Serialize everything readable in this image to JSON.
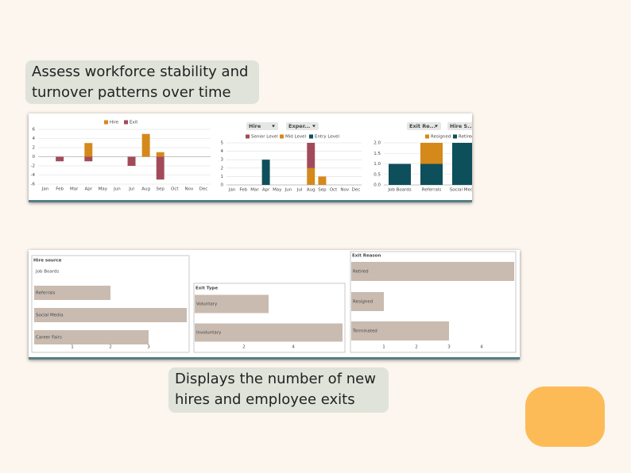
{
  "captions": [
    "Assess workforce stability and turnover patterns over time",
    "Displays the number of new hires and employee exits"
  ],
  "chart_data": [
    {
      "type": "bar",
      "stacked": true,
      "grid": true,
      "categories": [
        "Jan",
        "Feb",
        "Mar",
        "Apr",
        "May",
        "Jun",
        "Jul",
        "Aug",
        "Sep",
        "Oct",
        "Nov",
        "Dec"
      ],
      "series": [
        {
          "name": "Hire",
          "color": "#d4891a",
          "values": [
            0,
            0,
            0,
            3,
            0,
            0,
            0,
            5,
            1,
            0,
            0,
            0
          ]
        },
        {
          "name": "Exit",
          "color": "#a34a5a",
          "values": [
            0,
            -1,
            0,
            -1,
            0,
            0,
            -2,
            0,
            -5,
            0,
            0,
            0
          ]
        }
      ],
      "ylim": [
        -6,
        6
      ],
      "yticks": [
        6,
        4,
        2,
        0,
        -2,
        -4,
        -6
      ]
    },
    {
      "type": "bar",
      "stacked": true,
      "grid": true,
      "filters": [
        "Hire",
        "Exper..."
      ],
      "categories": [
        "Jan",
        "Feb",
        "Mar",
        "Apr",
        "May",
        "Jun",
        "Jul",
        "Aug",
        "Sep",
        "Oct",
        "Nov",
        "Dec"
      ],
      "series": [
        {
          "name": "Entry Level",
          "color": "#0e4f5c",
          "values": [
            0,
            0,
            0,
            3,
            0,
            0,
            0,
            0,
            0,
            0,
            0,
            0
          ]
        },
        {
          "name": "Mid Level",
          "color": "#d4891a",
          "values": [
            0,
            0,
            0,
            0,
            0,
            0,
            0,
            2,
            1,
            0,
            0,
            0
          ]
        },
        {
          "name": "Senior Level",
          "color": "#a34a5a",
          "values": [
            0,
            0,
            0,
            0,
            0,
            0,
            0,
            3,
            0,
            0,
            0,
            0
          ]
        }
      ],
      "ylim": [
        0,
        5
      ],
      "yticks": [
        0,
        1,
        2,
        3,
        4,
        5
      ]
    },
    {
      "type": "bar",
      "stacked": true,
      "grid": true,
      "filters": [
        "Exit Re...",
        "Hire S..."
      ],
      "categories": [
        "Job Boards",
        "Referrals",
        "Social Media"
      ],
      "series": [
        {
          "name": "Retired",
          "color": "#0e4f5c",
          "values": [
            1,
            1,
            2
          ]
        },
        {
          "name": "Resigned",
          "color": "#d4891a",
          "values": [
            0,
            1,
            0
          ]
        }
      ],
      "ylim": [
        0,
        2
      ],
      "yticks": [
        {
          "value": 0,
          "label": "0.0"
        },
        {
          "value": 0.5,
          "label": "0.5"
        },
        {
          "value": 1,
          "label": "1.0"
        },
        {
          "value": 1.5,
          "label": "1.5"
        },
        {
          "value": 2,
          "label": "2.0"
        }
      ]
    },
    {
      "type": "barh",
      "title": "Hire source",
      "color": "#c9bbb0",
      "categories": [
        "Job Boards",
        "Referrals",
        "Social Media",
        "Career Fairs"
      ],
      "values": [
        0,
        2,
        4,
        3
      ],
      "xlim": [
        0,
        4
      ],
      "xticks": [
        1,
        2,
        3
      ]
    },
    {
      "type": "barh",
      "title": "Exit Type",
      "color": "#c9bbb0",
      "categories": [
        "Voluntary",
        "Involuntary"
      ],
      "values": [
        3,
        6
      ],
      "xlim": [
        0,
        6
      ],
      "xticks": [
        2,
        4
      ]
    },
    {
      "type": "barh",
      "title": "Exit Reason",
      "color": "#c9bbb0",
      "categories": [
        "Retired",
        "Resigned",
        "Terminated"
      ],
      "values": [
        5,
        1,
        3
      ],
      "xlim": [
        0,
        5
      ],
      "xticks": [
        1,
        2,
        3,
        4
      ]
    }
  ]
}
